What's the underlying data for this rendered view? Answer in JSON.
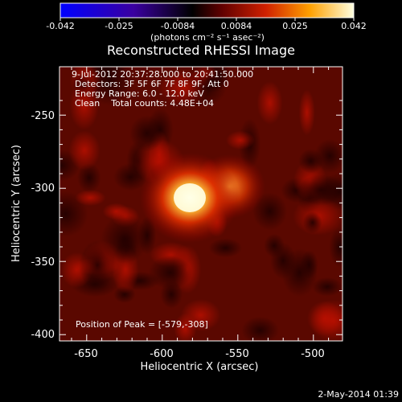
{
  "colorbar": {
    "ticks": [
      "-0.042",
      "-0.025",
      "-0.0084",
      "0.0084",
      "0.025",
      "0.042"
    ],
    "units": "(photons cm⁻² s⁻¹ asec⁻²)"
  },
  "title": "Reconstructed RHESSI Image",
  "info": {
    "time_range": "9-Jul-2012 20:37:28.000 to 20:41:50.000",
    "detectors": "Detectors: 3F 5F 6F 7F 8F 9F, Att 0",
    "energy": "Energy Range: 6.0 - 12.0 keV",
    "clean": "Clean    Total counts: 4.48E+04",
    "peak": "Position of Peak = [-579,-308]"
  },
  "axes": {
    "xlabel": "Heliocentric X (arcsec)",
    "ylabel": "Heliocentric Y (arcsec)",
    "xticks": [
      "-650",
      "-600",
      "-550",
      "-500"
    ],
    "yticks": [
      "-250",
      "-300",
      "-350",
      "-400"
    ]
  },
  "footer": "2-May-2014 01:39",
  "colors": {
    "background": "#000000",
    "map_dark": "#3a0000",
    "map_peak": "#ffffe0"
  }
}
